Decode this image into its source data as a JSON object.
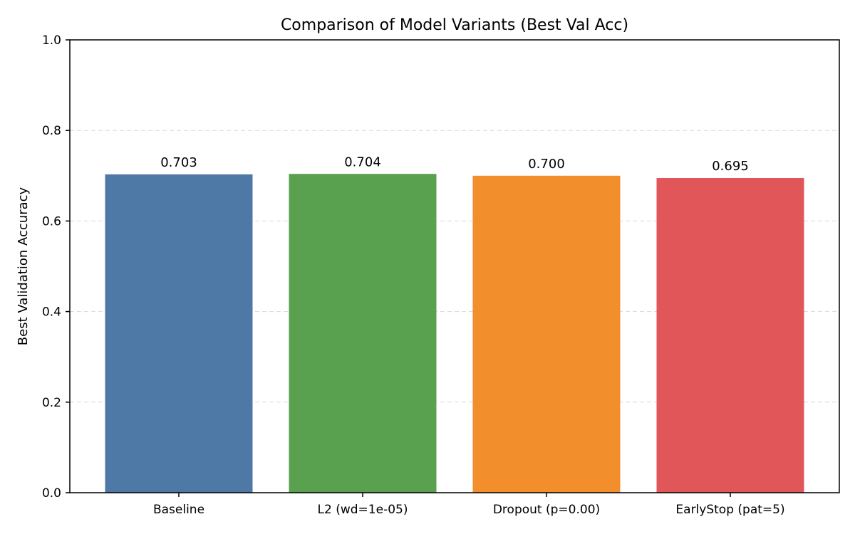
{
  "chart_data": {
    "type": "bar",
    "title": "Comparison of Model Variants (Best Val Acc)",
    "xlabel": "",
    "ylabel": "Best Validation Accuracy",
    "ylim": [
      0,
      1.0
    ],
    "yticks": [
      "0.0",
      "0.2",
      "0.4",
      "0.6",
      "0.8",
      "1.0"
    ],
    "grid": "horizontal dashed",
    "categories": [
      "Baseline",
      "L2 (wd=1e-05)",
      "Dropout (p=0.00)",
      "EarlyStop (pat=5)"
    ],
    "values": [
      0.703,
      0.704,
      0.7,
      0.695
    ],
    "value_labels": [
      "0.703",
      "0.704",
      "0.700",
      "0.695"
    ],
    "colors": [
      "#4e79a7",
      "#59a14f",
      "#f28e2b",
      "#e15759"
    ]
  }
}
